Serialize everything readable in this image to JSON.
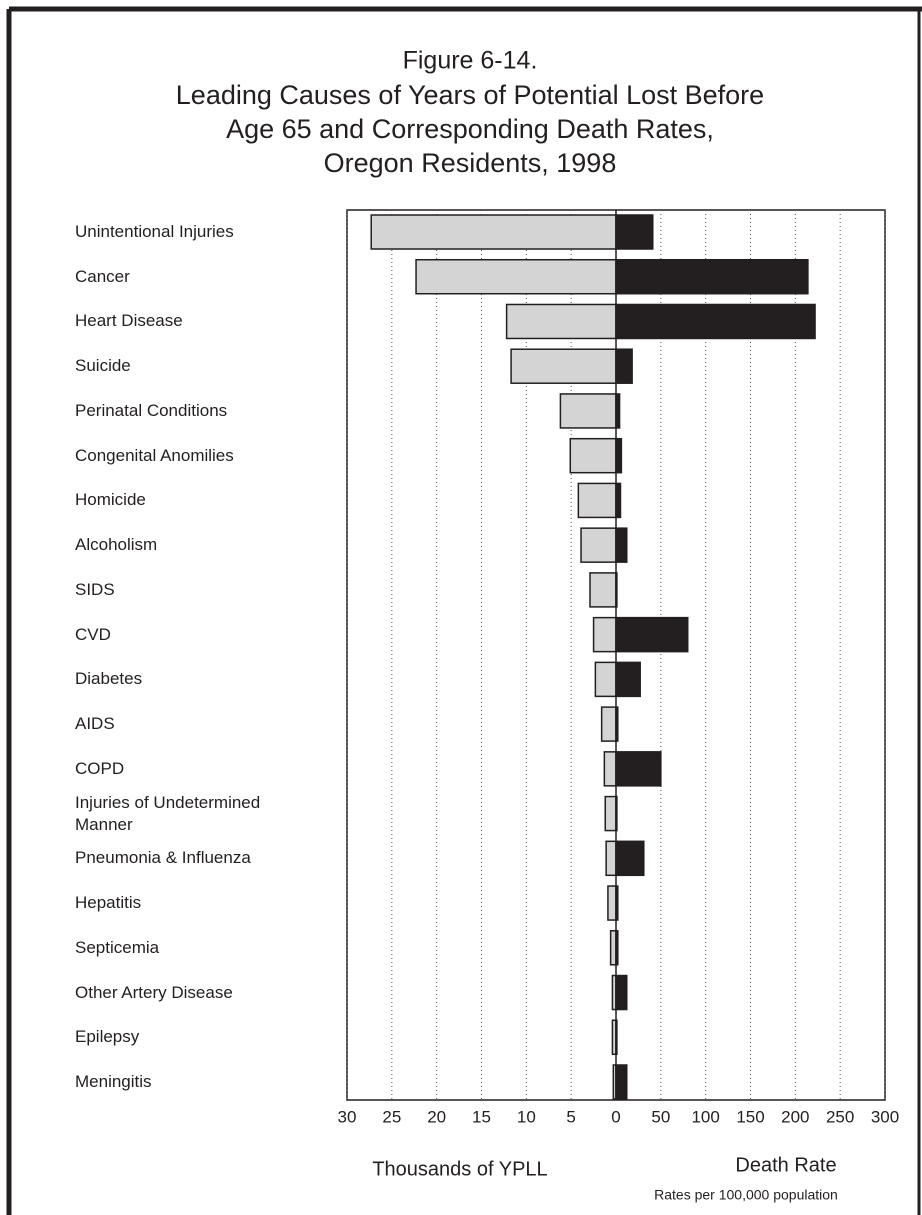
{
  "chart_data": {
    "type": "diverging_bar",
    "figure_label": "Figure 6-14.",
    "title": [
      "Leading Causes of Years of Potential Lost Before",
      "Age 65 and Corresponding Death Rates,",
      "Oregon Residents, 1998"
    ],
    "categories": [
      "Unintentional Injuries",
      "Cancer",
      "Heart Disease",
      "Suicide",
      "Perinatal Conditions",
      "Congenital Anomilies",
      "Homicide",
      "Alcoholism",
      "SIDS",
      "CVD",
      "Diabetes",
      "AIDS",
      "COPD",
      "Injuries of Undetermined Manner",
      "Pneumonia & Influenza",
      "Hepatitis",
      "Septicemia",
      "Other Artery Disease",
      "Epilepsy",
      "Meningitis"
    ],
    "series": [
      {
        "name": "Thousands of YPLL",
        "color": "#d4d4d4",
        "axis": "x",
        "values": [
          27.3,
          22.3,
          12.2,
          11.7,
          6.2,
          5.1,
          4.2,
          3.9,
          2.9,
          2.5,
          2.3,
          1.6,
          1.3,
          1.2,
          1.1,
          0.9,
          0.6,
          0.4,
          0.4,
          0.3
        ]
      },
      {
        "name": "Death Rate",
        "color": "#231f20",
        "axis": "x2",
        "values": [
          41,
          214,
          222,
          18,
          4,
          6,
          5,
          12,
          1,
          80,
          27,
          2,
          50,
          1,
          31,
          2,
          2,
          12,
          1,
          12
        ]
      }
    ],
    "xlim": [
      30,
      0
    ],
    "xticks": [
      30,
      25,
      20,
      15,
      10,
      5,
      0
    ],
    "x2lim": [
      0,
      300
    ],
    "x2ticks": [
      50,
      100,
      150,
      200,
      250,
      300
    ],
    "note": "Rates per 100,000 population",
    "grid": true
  }
}
